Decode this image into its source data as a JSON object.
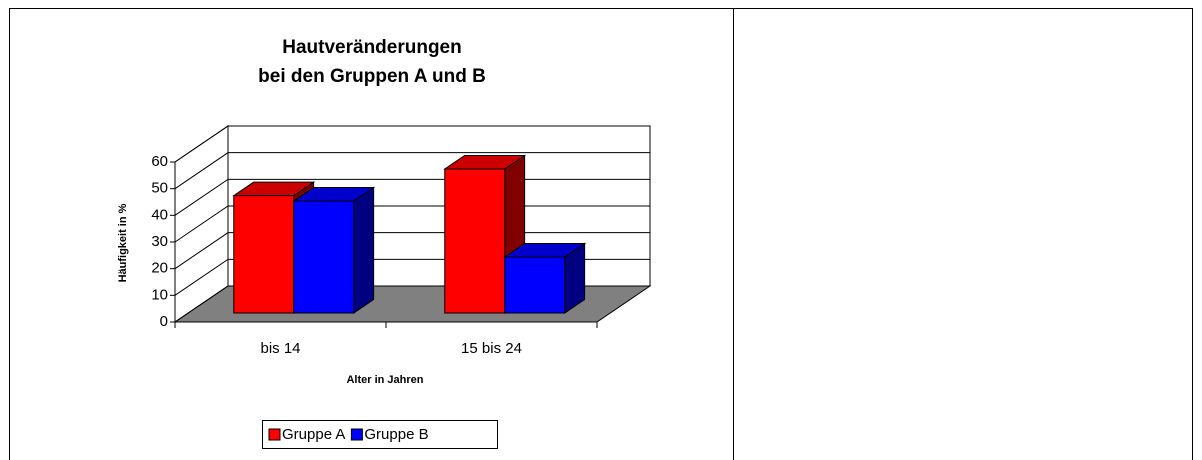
{
  "chart_data": {
    "type": "bar3d",
    "title": [
      "Hautveränderungen",
      "bei den Gruppen A und B"
    ],
    "y_label": "Häufigkeit in %",
    "x_label": "Alter in Jahren",
    "categories": [
      "bis 14",
      "15 bis 24"
    ],
    "series": [
      {
        "name": "Gruppe A",
        "color": "#ff0000",
        "values": [
          44,
          54
        ]
      },
      {
        "name": "Gruppe B",
        "color": "#0000ff",
        "values": [
          42,
          21
        ]
      }
    ],
    "ylim": [
      0,
      60
    ],
    "yticks": [
      0,
      10,
      20,
      30,
      40,
      50,
      60
    ],
    "grid": true,
    "legend": "bottom"
  }
}
